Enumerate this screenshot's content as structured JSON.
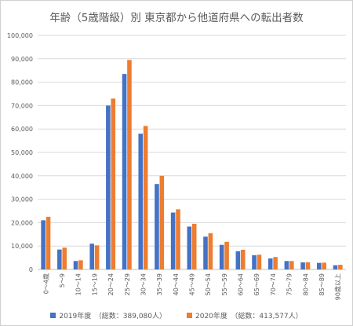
{
  "chart_data": {
    "type": "bar",
    "title": "年齢（5歳階級）別 東京都から他道府県への転出者数",
    "categories": [
      "0～4歳",
      "5～9",
      "10～14",
      "15～19",
      "20～24",
      "25～29",
      "30～34",
      "35～39",
      "40～44",
      "45～49",
      "50～54",
      "55～59",
      "60～64",
      "65～69",
      "70～74",
      "75～79",
      "80～84",
      "85～89",
      "90歳以上"
    ],
    "series": [
      {
        "name": "2019年度　（総数：389,080人）",
        "color": "#4472c4",
        "values": [
          21000,
          8500,
          3600,
          11000,
          70000,
          83500,
          58000,
          36500,
          24300,
          18300,
          14000,
          10500,
          7800,
          6100,
          4700,
          3600,
          3000,
          2800,
          1800
        ]
      },
      {
        "name": "2020年度　（総数：413,577人）",
        "color": "#ed7d31",
        "values": [
          22500,
          9300,
          3900,
          10300,
          73000,
          89500,
          61300,
          40000,
          25700,
          19500,
          15500,
          11800,
          8400,
          6300,
          5300,
          3600,
          3100,
          2900,
          2000
        ]
      }
    ],
    "yticks": [
      "0",
      "10,000",
      "20,000",
      "30,000",
      "40,000",
      "50,000",
      "60,000",
      "70,000",
      "80,000",
      "90,000",
      "100,000"
    ],
    "ylim": [
      0,
      100000
    ],
    "grid": true,
    "legend": "bottom"
  }
}
